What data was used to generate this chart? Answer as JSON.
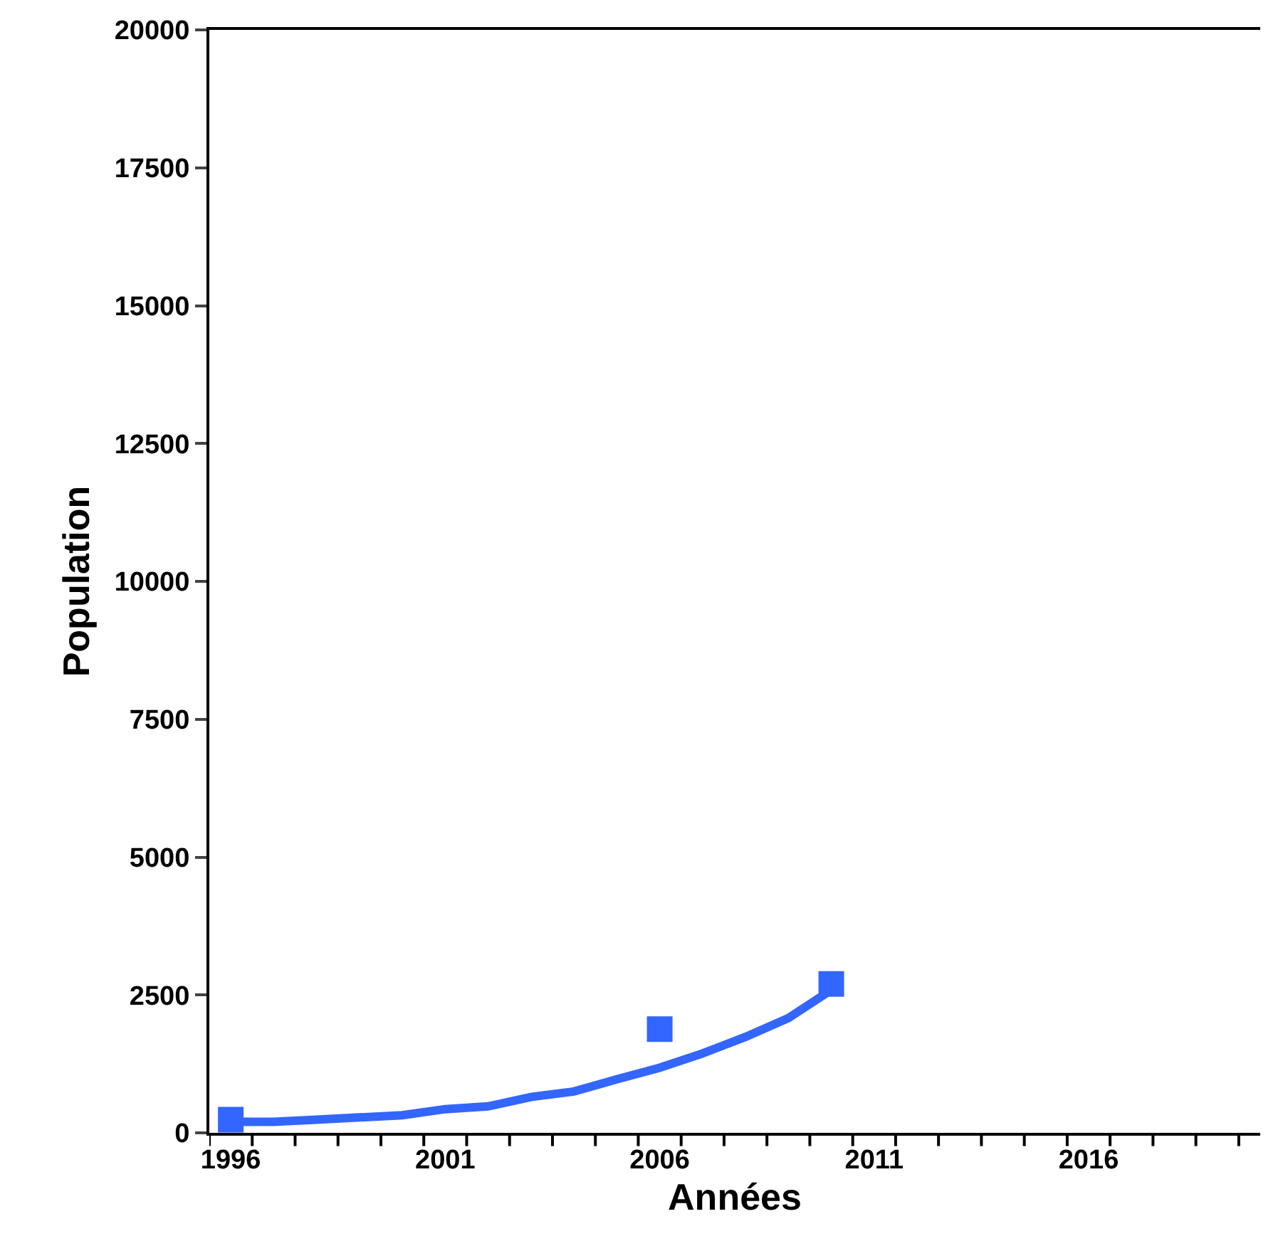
{
  "chart_data": {
    "type": "line",
    "xlabel": "Années",
    "ylabel": "Population",
    "xlim": [
      1995.5,
      2020
    ],
    "ylim": [
      0,
      20000
    ],
    "xticks": [
      1996,
      2001,
      2006,
      2011,
      2016,
      {
        "value": 1995.5,
        "label": null
      },
      {
        "value": 1996.5,
        "label": null
      },
      {
        "value": 1997.5,
        "label": null
      },
      {
        "value": 1998.5,
        "label": null
      },
      {
        "value": 1999.5,
        "label": null
      },
      {
        "value": 2000.5,
        "label": null
      },
      {
        "value": 2001.5,
        "label": null
      },
      {
        "value": 2002.5,
        "label": null
      },
      {
        "value": 2003.5,
        "label": null
      },
      {
        "value": 2004.5,
        "label": null
      },
      {
        "value": 2005.5,
        "label": null
      },
      {
        "value": 2006.5,
        "label": null
      },
      {
        "value": 2007.5,
        "label": null
      },
      {
        "value": 2008.5,
        "label": null
      },
      {
        "value": 2009.5,
        "label": null
      },
      {
        "value": 2010.5,
        "label": null
      },
      {
        "value": 2011.5,
        "label": null
      },
      {
        "value": 2012.5,
        "label": null
      },
      {
        "value": 2013.5,
        "label": null
      },
      {
        "value": 2014.5,
        "label": null
      },
      {
        "value": 2015.5,
        "label": null
      },
      {
        "value": 2016.5,
        "label": null
      },
      {
        "value": 2017.5,
        "label": null
      },
      {
        "value": 2018.5,
        "label": null
      },
      {
        "value": 2019.5,
        "label": null
      }
    ],
    "yticks": [
      0,
      2500,
      5000,
      7500,
      10000,
      12500,
      15000,
      17500,
      20000
    ],
    "series": [
      {
        "color": "#3366ff",
        "marker": "none",
        "line_style": "solid",
        "x": [
          1996,
          1997,
          1998,
          1999,
          2000,
          2001,
          2002,
          2003,
          2004,
          2005,
          2006,
          2007,
          2008,
          2009,
          2010
        ],
        "values": [
          200,
          200,
          240,
          280,
          320,
          430,
          480,
          650,
          750,
          970,
          1180,
          1440,
          1740,
          2080,
          2590
        ]
      },
      {
        "type": "scatter",
        "color": "#3366ff",
        "marker": "square",
        "x": [
          1996,
          2006,
          2010
        ],
        "values": [
          240,
          1880,
          2700
        ]
      }
    ]
  }
}
